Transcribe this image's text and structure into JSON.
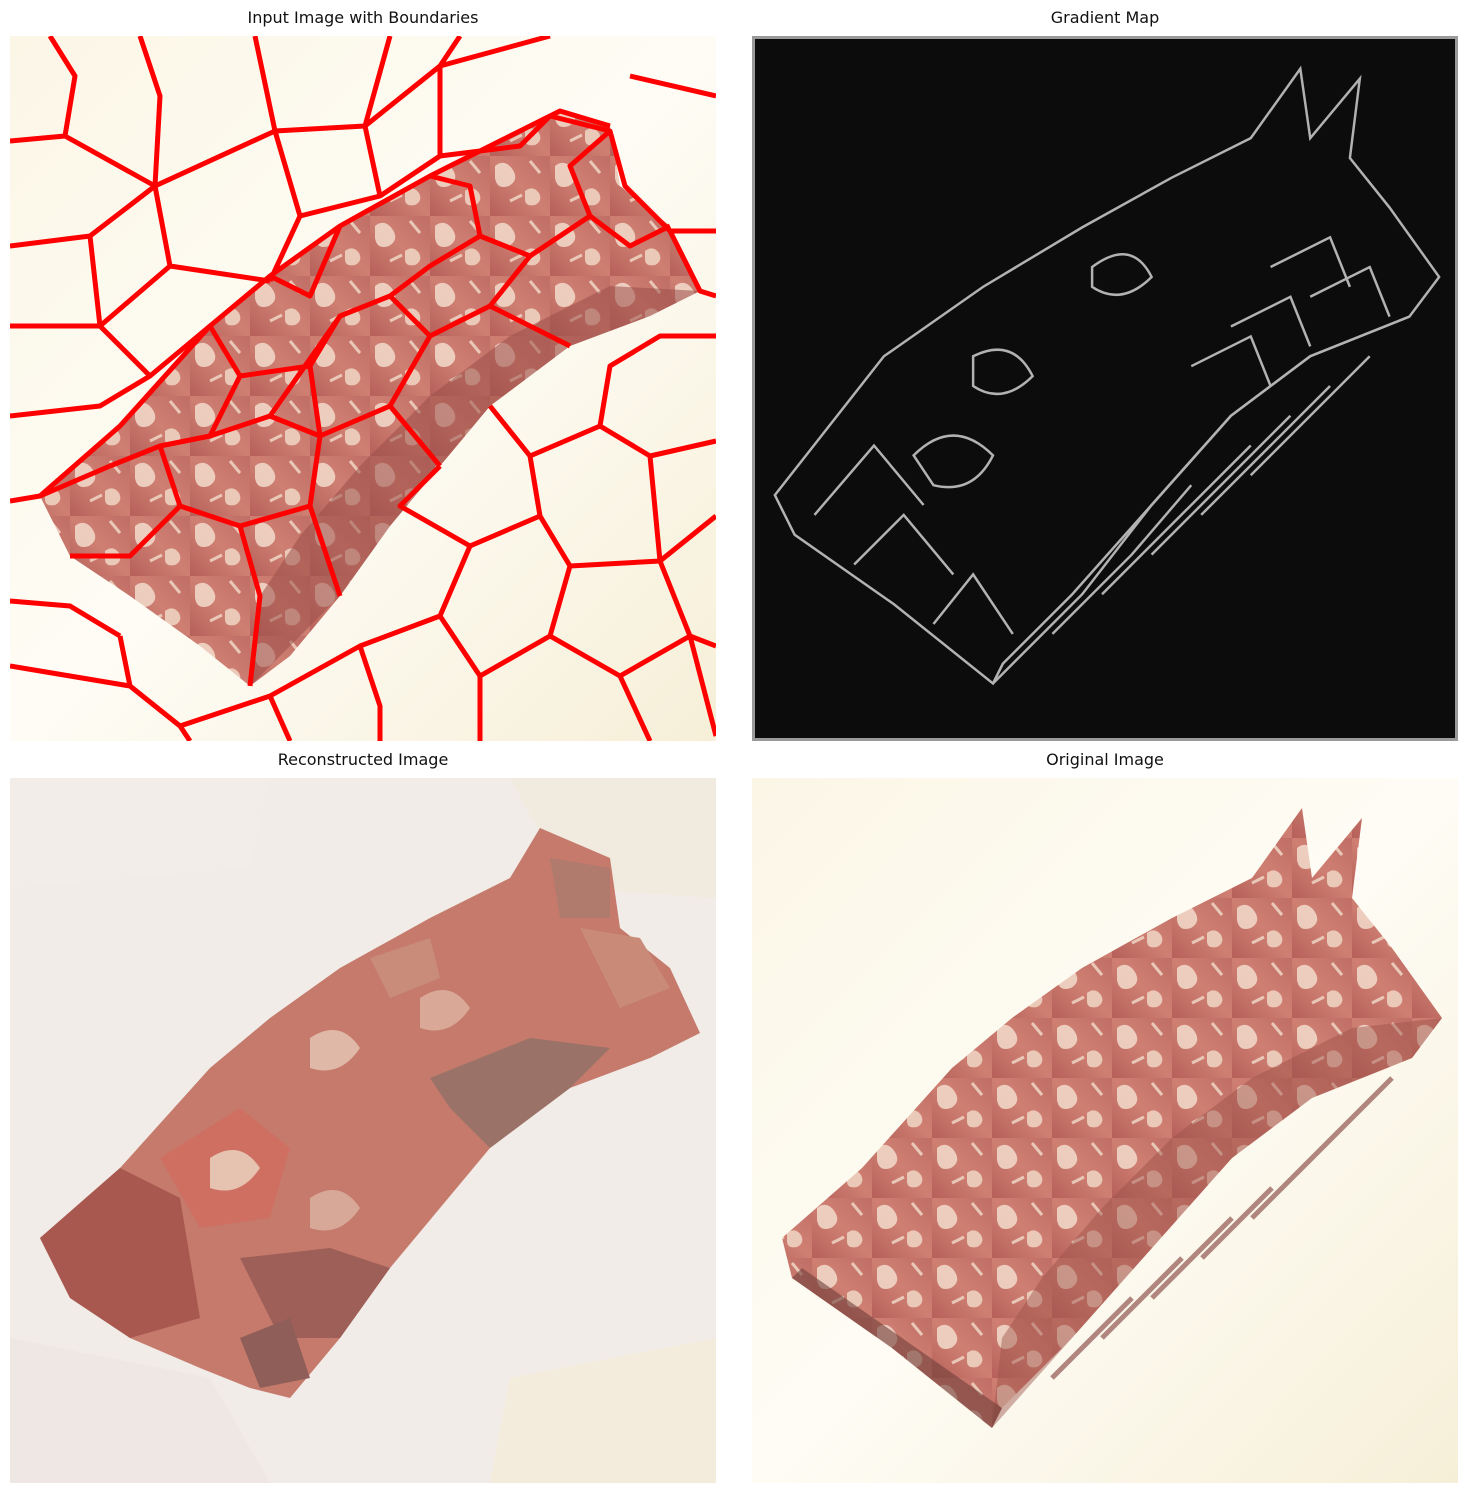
{
  "figure": {
    "panels": [
      {
        "title": "Input Image with Boundaries"
      },
      {
        "title": "Gradient Map"
      },
      {
        "title": "Reconstructed Image"
      },
      {
        "title": "Original Image"
      }
    ]
  },
  "colors": {
    "background_paper": "#fdf9ee",
    "origami_base": "#c9786c",
    "origami_dark": "#9b4f48",
    "floral_light": "#f1dccb",
    "boundary_red": "#ff0000",
    "gradient_bg": "#0c0c0c",
    "gradient_edge": "#cfcfcf"
  }
}
